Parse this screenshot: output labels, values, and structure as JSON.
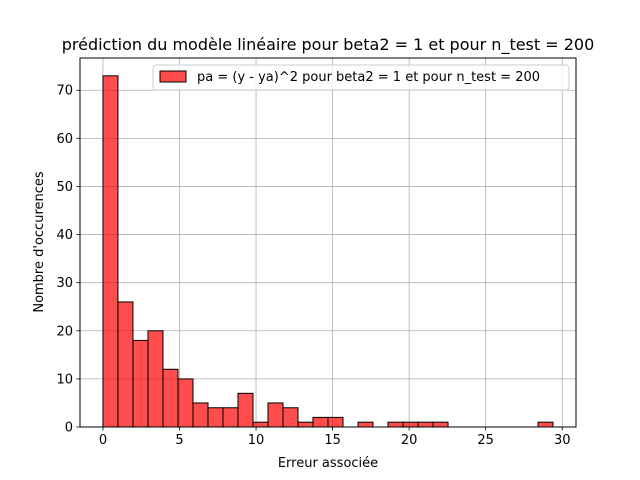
{
  "chart_data": {
    "type": "bar",
    "title": "prédiction du modèle linéaire pour beta2 = 1 et pour n_test = 200",
    "xlabel": "Erreur associée",
    "ylabel": "Nombre d'occurences",
    "xlim": [
      -1.5,
      30.9
    ],
    "ylim": [
      0,
      76.7
    ],
    "xticks": [
      0,
      5,
      10,
      15,
      20,
      25,
      30
    ],
    "yticks": [
      0,
      10,
      20,
      30,
      40,
      50,
      60,
      70
    ],
    "grid": true,
    "legend_position": "top-right",
    "bin_width": 0.98,
    "series": [
      {
        "name": "pa = (y - ya)^2 pour beta2 = 1 et pour n_test = 200",
        "color": "#ff0000",
        "fill_opacity": 0.7,
        "edge_color": "#000000",
        "bin_starts": [
          0,
          0.98,
          1.96,
          2.94,
          3.92,
          4.9,
          5.88,
          6.86,
          7.84,
          8.82,
          9.8,
          10.78,
          11.76,
          12.74,
          13.72,
          14.7,
          15.68,
          16.66,
          17.64,
          18.62,
          19.6,
          20.58,
          21.56,
          22.54,
          23.52,
          24.5,
          25.48,
          26.46,
          27.44,
          28.42
        ],
        "values": [
          73,
          26,
          18,
          20,
          12,
          10,
          5,
          4,
          4,
          7,
          1,
          5,
          4,
          1,
          2,
          2,
          0,
          1,
          0,
          1,
          1,
          1,
          1,
          0,
          0,
          0,
          0,
          0,
          0,
          1
        ]
      }
    ]
  }
}
